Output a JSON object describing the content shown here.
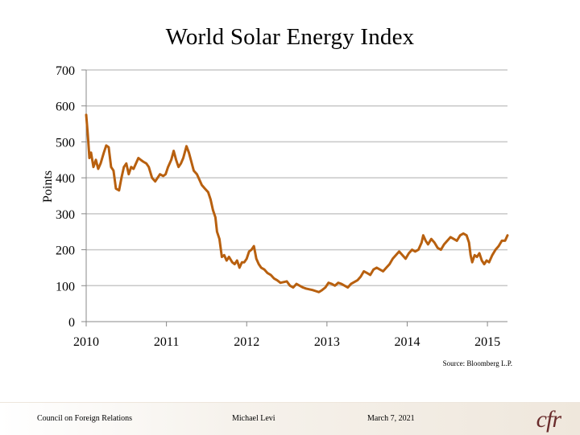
{
  "chart_data": {
    "type": "line",
    "title": "World Solar Energy Index",
    "ylabel": "Points",
    "xlabel": "",
    "ylim": [
      0,
      700
    ],
    "xlim": [
      2010.0,
      2015.25
    ],
    "y_ticks": [
      0,
      100,
      200,
      300,
      400,
      500,
      600,
      700
    ],
    "x_ticks": [
      2010,
      2011,
      2012,
      2013,
      2014,
      2015
    ],
    "grid": true,
    "series": [
      {
        "color": "#b8600f",
        "points": [
          [
            2010.0,
            575
          ],
          [
            2010.02,
            520
          ],
          [
            2010.04,
            455
          ],
          [
            2010.06,
            470
          ],
          [
            2010.09,
            430
          ],
          [
            2010.12,
            450
          ],
          [
            2010.15,
            425
          ],
          [
            2010.18,
            440
          ],
          [
            2010.22,
            470
          ],
          [
            2010.25,
            490
          ],
          [
            2010.28,
            485
          ],
          [
            2010.31,
            430
          ],
          [
            2010.34,
            420
          ],
          [
            2010.37,
            370
          ],
          [
            2010.41,
            365
          ],
          [
            2010.44,
            400
          ],
          [
            2010.47,
            430
          ],
          [
            2010.5,
            440
          ],
          [
            2010.53,
            410
          ],
          [
            2010.56,
            430
          ],
          [
            2010.59,
            425
          ],
          [
            2010.62,
            440
          ],
          [
            2010.65,
            455
          ],
          [
            2010.68,
            450
          ],
          [
            2010.71,
            445
          ],
          [
            2010.75,
            440
          ],
          [
            2010.78,
            430
          ],
          [
            2010.82,
            400
          ],
          [
            2010.86,
            390
          ],
          [
            2010.89,
            400
          ],
          [
            2010.92,
            410
          ],
          [
            2010.96,
            405
          ],
          [
            2010.99,
            410
          ],
          [
            2011.02,
            430
          ],
          [
            2011.06,
            450
          ],
          [
            2011.09,
            475
          ],
          [
            2011.12,
            450
          ],
          [
            2011.15,
            430
          ],
          [
            2011.18,
            440
          ],
          [
            2011.21,
            455
          ],
          [
            2011.25,
            488
          ],
          [
            2011.28,
            470
          ],
          [
            2011.31,
            445
          ],
          [
            2011.34,
            420
          ],
          [
            2011.38,
            410
          ],
          [
            2011.41,
            395
          ],
          [
            2011.44,
            380
          ],
          [
            2011.48,
            370
          ],
          [
            2011.52,
            360
          ],
          [
            2011.55,
            340
          ],
          [
            2011.58,
            310
          ],
          [
            2011.61,
            290
          ],
          [
            2011.63,
            250
          ],
          [
            2011.66,
            230
          ],
          [
            2011.69,
            180
          ],
          [
            2011.72,
            185
          ],
          [
            2011.75,
            170
          ],
          [
            2011.78,
            180
          ],
          [
            2011.82,
            165
          ],
          [
            2011.85,
            160
          ],
          [
            2011.88,
            170
          ],
          [
            2011.91,
            150
          ],
          [
            2011.94,
            165
          ],
          [
            2011.97,
            165
          ],
          [
            2012.0,
            175
          ],
          [
            2012.03,
            195
          ],
          [
            2012.06,
            200
          ],
          [
            2012.09,
            210
          ],
          [
            2012.12,
            175
          ],
          [
            2012.15,
            160
          ],
          [
            2012.18,
            150
          ],
          [
            2012.22,
            145
          ],
          [
            2012.26,
            135
          ],
          [
            2012.3,
            130
          ],
          [
            2012.34,
            120
          ],
          [
            2012.38,
            115
          ],
          [
            2012.42,
            108
          ],
          [
            2012.46,
            110
          ],
          [
            2012.5,
            112
          ],
          [
            2012.54,
            100
          ],
          [
            2012.58,
            95
          ],
          [
            2012.62,
            105
          ],
          [
            2012.66,
            100
          ],
          [
            2012.7,
            95
          ],
          [
            2012.74,
            92
          ],
          [
            2012.78,
            90
          ],
          [
            2012.82,
            88
          ],
          [
            2012.86,
            85
          ],
          [
            2012.9,
            82
          ],
          [
            2012.94,
            88
          ],
          [
            2012.98,
            95
          ],
          [
            2013.02,
            108
          ],
          [
            2013.06,
            105
          ],
          [
            2013.1,
            100
          ],
          [
            2013.14,
            108
          ],
          [
            2013.18,
            105
          ],
          [
            2013.22,
            100
          ],
          [
            2013.26,
            95
          ],
          [
            2013.3,
            105
          ],
          [
            2013.34,
            110
          ],
          [
            2013.38,
            115
          ],
          [
            2013.42,
            125
          ],
          [
            2013.46,
            140
          ],
          [
            2013.5,
            135
          ],
          [
            2013.54,
            130
          ],
          [
            2013.58,
            145
          ],
          [
            2013.62,
            150
          ],
          [
            2013.66,
            145
          ],
          [
            2013.7,
            140
          ],
          [
            2013.74,
            150
          ],
          [
            2013.78,
            160
          ],
          [
            2013.82,
            175
          ],
          [
            2013.86,
            185
          ],
          [
            2013.9,
            195
          ],
          [
            2013.94,
            185
          ],
          [
            2013.98,
            175
          ],
          [
            2014.02,
            190
          ],
          [
            2014.06,
            200
          ],
          [
            2014.1,
            195
          ],
          [
            2014.14,
            200
          ],
          [
            2014.18,
            220
          ],
          [
            2014.2,
            240
          ],
          [
            2014.23,
            225
          ],
          [
            2014.26,
            215
          ],
          [
            2014.3,
            230
          ],
          [
            2014.34,
            220
          ],
          [
            2014.38,
            205
          ],
          [
            2014.42,
            200
          ],
          [
            2014.46,
            215
          ],
          [
            2014.5,
            225
          ],
          [
            2014.54,
            235
          ],
          [
            2014.58,
            230
          ],
          [
            2014.62,
            225
          ],
          [
            2014.66,
            240
          ],
          [
            2014.7,
            245
          ],
          [
            2014.74,
            240
          ],
          [
            2014.77,
            220
          ],
          [
            2014.79,
            185
          ],
          [
            2014.81,
            165
          ],
          [
            2014.84,
            185
          ],
          [
            2014.87,
            180
          ],
          [
            2014.9,
            190
          ],
          [
            2014.93,
            170
          ],
          [
            2014.96,
            160
          ],
          [
            2014.99,
            170
          ],
          [
            2015.02,
            165
          ],
          [
            2015.06,
            185
          ],
          [
            2015.1,
            200
          ],
          [
            2015.14,
            210
          ],
          [
            2015.18,
            225
          ],
          [
            2015.22,
            225
          ],
          [
            2015.25,
            240
          ]
        ]
      }
    ]
  },
  "source_text": "Source: Bloomberg L.P.",
  "footer": {
    "organization": "Council on Foreign Relations",
    "author": "Michael Levi",
    "date": "March 7, 2021",
    "logo_text": "cfr"
  },
  "colors": {
    "line": "#b8600f",
    "grid": "#c8c8c8",
    "axis": "#888888",
    "logo": "#6a2c2c"
  }
}
